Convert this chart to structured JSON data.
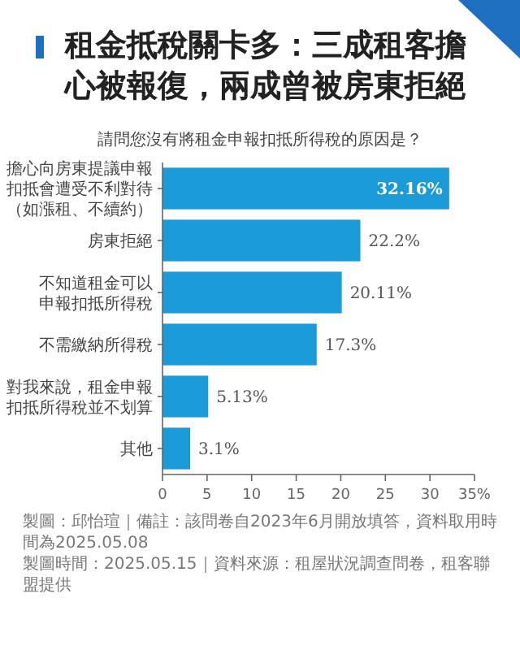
{
  "chart_data": {
    "type": "bar",
    "orientation": "horizontal",
    "title": "租金抵稅關卡多：三成租客擔心被報復，兩成曾被房東拒絕",
    "subtitle": "請問您沒有將租金申報扣抵所得稅的原因是？",
    "categories": [
      "擔心向房東提議申報扣抵會遭受不利對待（如漲租、不續約）",
      "房東拒絕",
      "不知道租金可以申報扣抵所得稅",
      "不需繳納所得稅",
      "對我來說，租金申報扣抵所得稅並不划算",
      "其他"
    ],
    "values": [
      32.16,
      22.2,
      20.11,
      17.3,
      5.13,
      3.1
    ],
    "value_labels": [
      "32.16%",
      "22.2%",
      "20.11%",
      "17.3%",
      "5.13%",
      "3.1%"
    ],
    "color": "#1a9bd7",
    "xlim": [
      0,
      35
    ],
    "xticks": [
      0,
      5,
      10,
      15,
      20,
      25,
      30,
      {
        "value": 35,
        "label": "35%"
      }
    ],
    "grid": false,
    "annotations": [
      "製圖：邱怡瑄｜備註：該問卷自2023年6月開放填答，資料取用時間為2025.05.08",
      "製圖時間：2025.05.15｜資料來源：租屋狀況調查問卷，租客聯盟提供"
    ]
  }
}
